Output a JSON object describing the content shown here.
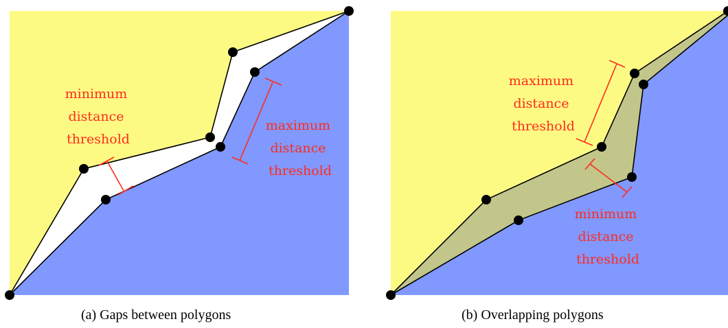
{
  "colors": {
    "upper_polygon": "#fdfa84",
    "lower_polygon": "#8198ff",
    "overlap": "#c2c68a",
    "gap": "#ffffff",
    "threshold": "#ff2b1c",
    "vertex": "#000000"
  },
  "panel_a": {
    "min_label": [
      "minimum",
      "distance",
      "threshold"
    ],
    "max_label": [
      "maximum",
      "distance",
      "threshold"
    ],
    "caption": "(a)  Gaps between polygons"
  },
  "panel_b": {
    "max_label": [
      "maximum",
      "distance",
      "threshold"
    ],
    "min_label": [
      "minimum",
      "distance",
      "threshold"
    ],
    "caption": "(b)  Overlapping polygons"
  }
}
